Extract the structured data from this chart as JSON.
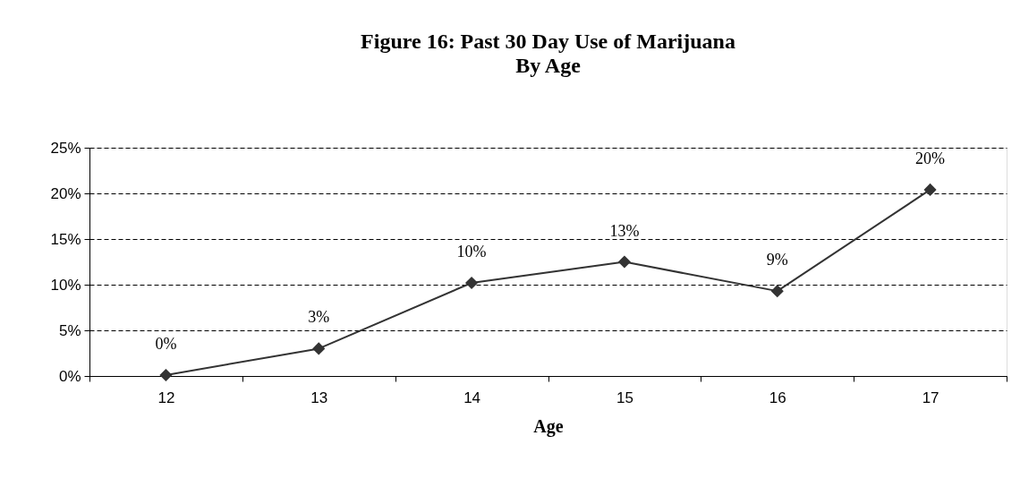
{
  "chart_data": {
    "type": "line",
    "title": "Figure 16:  Past 30 Day Use of Marijuana",
    "subtitle": "By Age",
    "xlabel": "Age",
    "categories": [
      "12",
      "13",
      "14",
      "15",
      "16",
      "17"
    ],
    "series": [
      {
        "color": "#333333",
        "values": [
          0.1,
          3.0,
          10.2,
          12.5,
          9.3,
          20.4
        ],
        "value_labels": [
          "0%",
          "3%",
          "10%",
          "13%",
          "9%",
          "20%"
        ]
      }
    ],
    "ylim": [
      0,
      25
    ],
    "yticks": [
      {
        "value": 0,
        "label": "0%"
      },
      {
        "value": 5,
        "label": "5%"
      },
      {
        "value": 10,
        "label": "10%"
      },
      {
        "value": 15,
        "label": "15%"
      },
      {
        "value": 20,
        "label": "20%"
      },
      {
        "value": 25,
        "label": "25%"
      }
    ],
    "grid": "y",
    "marker": "diamond",
    "line_style": "solid"
  }
}
